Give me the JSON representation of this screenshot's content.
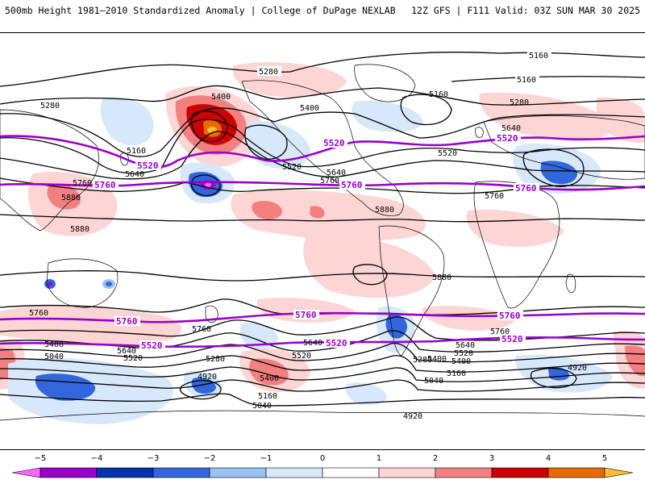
{
  "header": {
    "left_title": "500mb Height 1981–2010 Standardized Anomaly | College of DuPage NEXLAB",
    "right_title": "12Z GFS | F111 Valid: 03Z SUN MAR 30 2025"
  },
  "colors": {
    "height_contour": "#000000",
    "highlight_contour": "#9900cc",
    "coastline": "#000000"
  },
  "contour_labels": {
    "black": [
      "5160",
      "5160",
      "5280",
      "5160",
      "5400",
      "5280",
      "5280",
      "5640",
      "5400",
      "5160",
      "5640",
      "5760",
      "5520",
      "5640",
      "5520",
      "5880",
      "5880",
      "5880",
      "5880",
      "5760",
      "5760",
      "5760",
      "5760",
      "5400",
      "5640",
      "5520",
      "5280",
      "5040",
      "4920",
      "5400",
      "5160",
      "5040",
      "5640",
      "5520",
      "5400",
      "5280",
      "5160",
      "5040",
      "4920",
      "5640",
      "5520",
      "5400",
      "4920",
      "5760"
    ],
    "purple": [
      "5520",
      "5520",
      "5520",
      "5760",
      "5760",
      "5760",
      "5760",
      "5760",
      "5760",
      "5520",
      "5520",
      "5520"
    ]
  },
  "colorbar": {
    "ticks": [
      "−5",
      "−4",
      "−3",
      "−2",
      "−1",
      "0",
      "1",
      "2",
      "3",
      "4",
      "5"
    ],
    "bins": [
      {
        "range": [
          -5.5,
          -5
        ],
        "color": "#ff66ff"
      },
      {
        "range": [
          -5,
          -4
        ],
        "color": "#9900cc"
      },
      {
        "range": [
          -4,
          -3
        ],
        "color": "#0033aa"
      },
      {
        "range": [
          -3,
          -2
        ],
        "color": "#3366dd"
      },
      {
        "range": [
          -2,
          -1
        ],
        "color": "#99c2f2"
      },
      {
        "range": [
          -1,
          0
        ],
        "color": "#d8e8fb"
      },
      {
        "range": [
          0,
          1
        ],
        "color": "#ffffff"
      },
      {
        "range": [
          1,
          2
        ],
        "color": "#fdd5d5"
      },
      {
        "range": [
          2,
          3
        ],
        "color": "#f28080"
      },
      {
        "range": [
          3,
          4
        ],
        "color": "#cc0000"
      },
      {
        "range": [
          4,
          5
        ],
        "color": "#e66a00"
      },
      {
        "range": [
          5,
          5.5
        ],
        "color": "#ffbb33"
      }
    ]
  }
}
